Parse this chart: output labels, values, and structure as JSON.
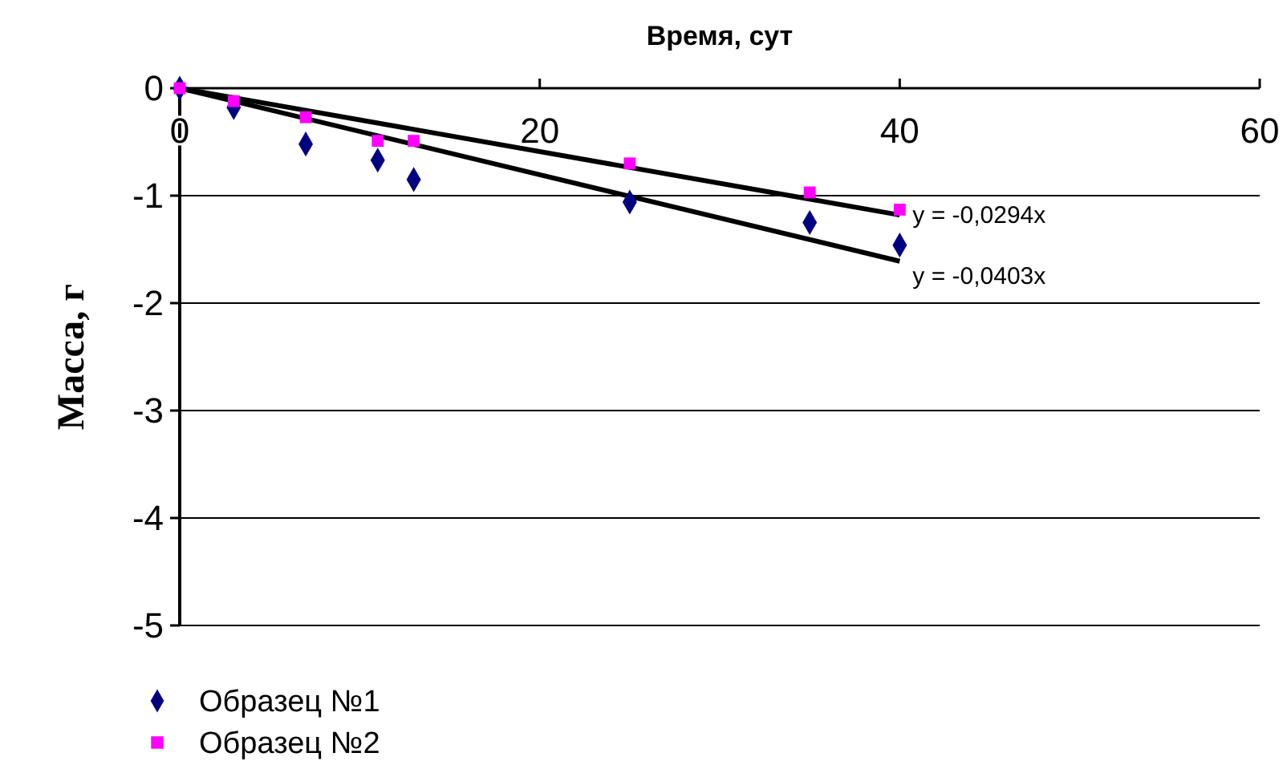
{
  "chart_data": {
    "type": "scatter",
    "xlabel": "Время, сут",
    "ylabel": "Масса, г",
    "xlim": [
      0,
      60
    ],
    "xticks": [
      0,
      20,
      40,
      60
    ],
    "ylim": [
      -5,
      0
    ],
    "yticks": [
      -5,
      -4,
      -3,
      -2,
      -1,
      0
    ],
    "grid": "y",
    "legend": "bottom left",
    "series": [
      {
        "name": "Образец №1",
        "color": "#000080",
        "marker": "diamond",
        "x": [
          0,
          3,
          7,
          11,
          13,
          25,
          35,
          40
        ],
        "values": [
          0,
          -0.18,
          -0.52,
          -0.67,
          -0.85,
          -1.06,
          -1.25,
          -1.46
        ]
      },
      {
        "name": "Образец №2",
        "color": "#ff00ff",
        "marker": "square",
        "x": [
          0,
          3,
          7,
          11,
          13,
          25,
          35,
          40
        ],
        "values": [
          0,
          -0.12,
          -0.27,
          -0.49,
          -0.49,
          -0.7,
          -0.97,
          -1.13
        ]
      },
      {
        "name": "y = -0,0294x",
        "type": "line",
        "color": "#000000",
        "marker": "none",
        "line_style": "solid",
        "x": [
          0,
          40
        ],
        "values": [
          0,
          -1.18
        ]
      },
      {
        "name": "y = -0,0403x",
        "type": "line",
        "color": "#000000",
        "marker": "none",
        "line_style": "solid",
        "x": [
          0,
          40
        ],
        "values": [
          0,
          -1.61
        ]
      }
    ]
  }
}
